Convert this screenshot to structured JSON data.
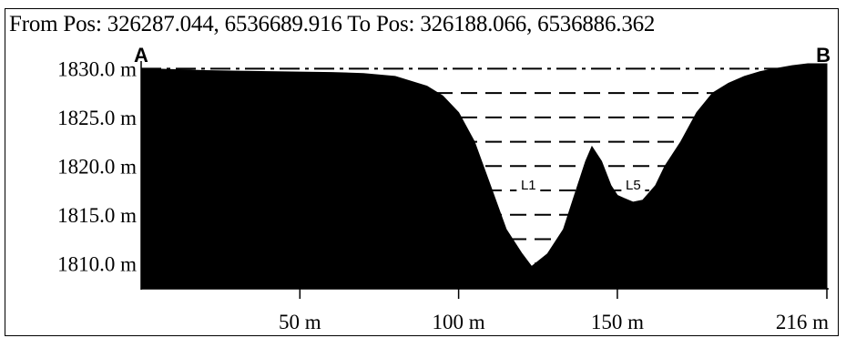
{
  "header": {
    "from_label": "From Pos:",
    "from_value": "326287.044, 6536689.916",
    "to_label": "To Pos:",
    "to_value": "326188.066, 6536886.362"
  },
  "chart_data": {
    "type": "area",
    "title": "",
    "xlabel": "",
    "ylabel": "",
    "xlim": [
      0,
      216
    ],
    "ylim": [
      1807.5,
      1830.5
    ],
    "x_ticks": [
      {
        "value": 50,
        "label": "50 m"
      },
      {
        "value": 100,
        "label": "100 m"
      },
      {
        "value": 150,
        "label": "150 m"
      },
      {
        "value": 216,
        "label": "216 m"
      }
    ],
    "y_ticks": [
      {
        "value": 1830,
        "label": "1830.0 m"
      },
      {
        "value": 1825,
        "label": "1825.0 m"
      },
      {
        "value": 1820,
        "label": "1820.0 m"
      },
      {
        "value": 1815,
        "label": "1815.0 m"
      },
      {
        "value": 1810,
        "label": "1810.0 m"
      }
    ],
    "x": [
      0,
      20,
      40,
      60,
      70,
      80,
      90,
      95,
      100,
      105,
      110,
      115,
      120,
      123,
      128,
      133,
      137,
      140,
      142,
      145,
      148,
      150,
      152,
      155,
      158,
      162,
      165,
      170,
      175,
      180,
      185,
      190,
      195,
      200,
      205,
      210,
      216
    ],
    "values": [
      1830.0,
      1829.8,
      1829.7,
      1829.6,
      1829.5,
      1829.2,
      1828.2,
      1827.2,
      1825.5,
      1822.5,
      1818.0,
      1813.5,
      1811.0,
      1809.7,
      1811.0,
      1813.5,
      1817.5,
      1820.5,
      1822.0,
      1820.5,
      1818.0,
      1817.0,
      1816.7,
      1816.3,
      1816.5,
      1818.0,
      1820.0,
      1822.5,
      1825.5,
      1827.5,
      1828.5,
      1829.2,
      1829.7,
      1830.0,
      1830.3,
      1830.5,
      1830.5
    ],
    "water_levels": [
      {
        "value": 1830.0,
        "style": "dash-dot"
      },
      {
        "value": 1827.5,
        "style": "dashed"
      },
      {
        "value": 1825.0,
        "style": "dashed"
      },
      {
        "value": 1822.5,
        "style": "dashed"
      },
      {
        "value": 1820.0,
        "style": "dashed"
      },
      {
        "value": 1817.5,
        "style": "dashed"
      },
      {
        "value": 1815.0,
        "style": "dashed"
      },
      {
        "value": 1812.5,
        "style": "dashed"
      },
      {
        "value": 1810.0,
        "style": "dashed"
      }
    ],
    "point_labels": [
      {
        "text": "A",
        "x": 0
      },
      {
        "text": "B",
        "x": 216
      }
    ],
    "annotations": [
      {
        "text": "L1",
        "x": 122,
        "y": 1817.7
      },
      {
        "text": "L5",
        "x": 155,
        "y": 1817.7
      }
    ],
    "fill_color": "#000000"
  }
}
